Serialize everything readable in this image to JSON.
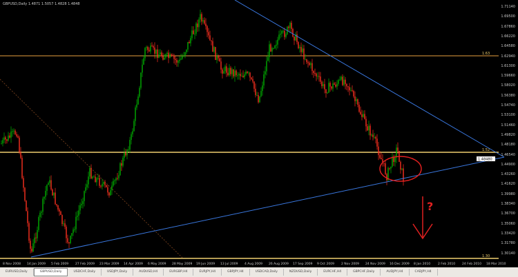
{
  "chart": {
    "title": "GBPUSD,Daily 1.4871 1.5057 1.4828 1.4848",
    "y_labels": [
      "1.71140",
      "1.69500",
      "1.67860",
      "1.66220",
      "1.64580",
      "1.62940",
      "1.61300",
      "1.59660",
      "1.58020",
      "1.56380",
      "1.54740",
      "1.53100",
      "1.51460",
      "1.49820",
      "1.48180",
      "1.46540",
      "1.44900",
      "1.43260",
      "1.41620",
      "1.39980",
      "1.38340",
      "1.36700",
      "1.35060",
      "1.33420",
      "1.31780",
      "1.30140"
    ],
    "current_price": "1.48480",
    "x_labels": [
      "8 Nov 2008",
      "14 Jan 2009",
      "5 Feb 2009",
      "27 Feb 2009",
      "23 Mar 2009",
      "14 Apr 2009",
      "6 May 2009",
      "28 May 2009",
      "19 Jun 2009",
      "13 Jul 2009",
      "4 Aug 2009",
      "26 Aug 2009",
      "17 Sep 2009",
      "9 Oct 2009",
      "2 Nov 2009",
      "24 Nov 2009",
      "16 Dec 2009",
      "8 Jan 2010",
      "2 Feb 2010",
      "24 Feb 2010",
      "18 Mar 2010"
    ],
    "level_labels": [
      "1.63",
      "1.52",
      "1.30"
    ],
    "annotation": "?",
    "colors": {
      "bull": "#00b000",
      "bear": "#ff3020",
      "trendline": "#3a78e0",
      "level": "#f0d070",
      "level_top": "#e8a040",
      "annotation": "#e02020"
    }
  },
  "tabs": [
    "EURUSD,Daily",
    "GBPUSD,Daily",
    "USDCHF,Daily",
    "USDJPY,Daily",
    "AUDUSD,H4",
    "EURGBP,H4",
    "EURJPY,H4",
    "GBPJPY,H4",
    "USDCAD,Daily",
    "NZDUSD,Daily",
    "EURCHF,H4",
    "GBPCHF,Daily",
    "AUDJPY,H4",
    "CADJPY,H4"
  ],
  "active_tab": 1
}
